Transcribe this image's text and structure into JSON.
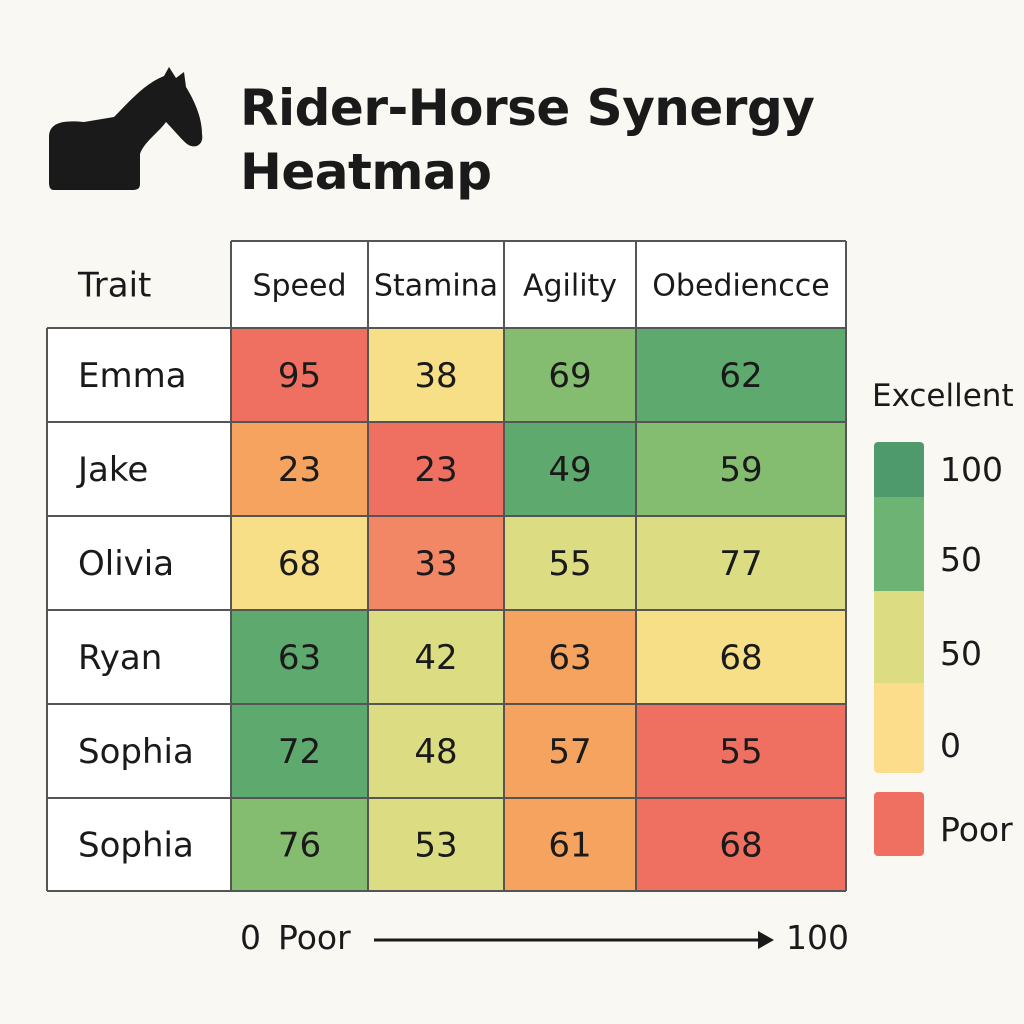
{
  "header": {
    "title_line1": "Rider-Horse Synergy",
    "title_line2": "Heatmap",
    "logo_icon": "horse-head-icon"
  },
  "chart_data": {
    "type": "heatmap",
    "corner_label": "Trait",
    "columns": [
      "Speed",
      "Stamina",
      "Agility",
      "Obediencce"
    ],
    "rows": [
      "Emma",
      "Jake",
      "Olivia",
      "Ryan",
      "Sophia",
      "Sophia"
    ],
    "values": [
      [
        95,
        38,
        69,
        62
      ],
      [
        23,
        23,
        49,
        59
      ],
      [
        68,
        33,
        55,
        77
      ],
      [
        63,
        42,
        63,
        68
      ],
      [
        72,
        48,
        57,
        55
      ],
      [
        76,
        53,
        61,
        68
      ]
    ],
    "cell_colors": [
      [
        "#ef7060",
        "#f7df88",
        "#84bd70",
        "#5eaa6e"
      ],
      [
        "#f5a35e",
        "#ef7060",
        "#5eaa6e",
        "#84bd70"
      ],
      [
        "#f7df88",
        "#f28766",
        "#dcdd82",
        "#dcdd82"
      ],
      [
        "#5eaa6e",
        "#dcdd82",
        "#f5a35e",
        "#f7df88"
      ],
      [
        "#5eaa6e",
        "#dcdd82",
        "#f5a35e",
        "#ef7060"
      ],
      [
        "#84bd70",
        "#dcdd82",
        "#f5a35e",
        "#ef7060"
      ]
    ],
    "legend": {
      "title": "Excellent",
      "ticks": [
        "100",
        "50",
        "50",
        "0"
      ],
      "poor_label": "Poor",
      "bands": [
        "#4e9a6d",
        "#6db373",
        "#dcdd82",
        "#fbdd8c"
      ],
      "poor_color": "#ef7060"
    },
    "axis_note": {
      "start": "0",
      "start_label": "Poor",
      "end": "100"
    }
  }
}
